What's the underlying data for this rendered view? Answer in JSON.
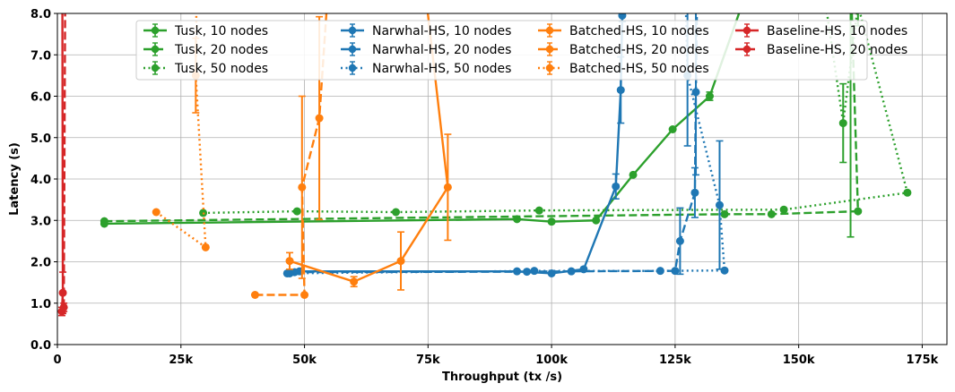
{
  "chart_data": {
    "type": "line",
    "title": "",
    "xlabel": "Throughput (tx /s)",
    "ylabel": "Latency (s)",
    "xlim": [
      0,
      180000
    ],
    "ylim": [
      0,
      8
    ],
    "x_ticks": [
      0,
      25000,
      50000,
      75000,
      100000,
      125000,
      150000,
      175000
    ],
    "x_tick_labels": [
      "0",
      "25k",
      "50k",
      "75k",
      "100k",
      "125k",
      "150k",
      "175k"
    ],
    "y_ticks": [
      0,
      1,
      2,
      3,
      4,
      5,
      6,
      7,
      8
    ],
    "y_tick_labels": [
      "0.0",
      "1.0",
      "2.0",
      "3.0",
      "4.0",
      "5.0",
      "6.0",
      "7.0",
      "8.0"
    ],
    "grid": true,
    "legend_position": "top-center",
    "legend_columns": 4,
    "colors": {
      "tusk": "#2ca02c",
      "narwhal": "#1f77b4",
      "batched": "#ff7f0e",
      "baseline": "#d62728"
    },
    "series": [
      {
        "name": "Tusk, 10 nodes",
        "color": "#2ca02c",
        "dash": "solid",
        "points": [
          [
            9500,
            2.92
          ],
          [
            93000,
            3.03
          ],
          [
            100000,
            2.97
          ],
          [
            109000,
            3.0
          ],
          [
            116500,
            4.1
          ],
          [
            124500,
            5.2
          ],
          [
            132000,
            6.0
          ],
          [
            140000,
            8.7
          ]
        ],
        "errors": [
          0.03,
          0.03,
          0.03,
          0.03,
          0.05,
          0.06,
          0.1,
          0.1
        ]
      },
      {
        "name": "Tusk, 20 nodes",
        "color": "#2ca02c",
        "dash": "dashed",
        "points": [
          [
            9500,
            2.98
          ],
          [
            135000,
            3.15
          ],
          [
            144500,
            3.15
          ],
          [
            162000,
            3.22
          ],
          [
            160500,
            9.0
          ]
        ],
        "errors": [
          0.03,
          0.05,
          0.05,
          0.05,
          6.4
        ]
      },
      {
        "name": "Tusk, 50 nodes",
        "color": "#2ca02c",
        "dash": "dotted",
        "points": [
          [
            29500,
            3.18
          ],
          [
            48500,
            3.22
          ],
          [
            68500,
            3.2
          ],
          [
            97500,
            3.24
          ],
          [
            147000,
            3.26
          ],
          [
            172000,
            3.67
          ],
          [
            162000,
            8.2
          ],
          [
            159000,
            5.35
          ],
          [
            155000,
            8.6
          ]
        ],
        "errors": [
          0.03,
          0.03,
          0.03,
          0.03,
          0.04,
          0.05,
          0.5,
          0.95,
          0.5
        ]
      },
      {
        "name": "Narwhal-HS, 10 nodes",
        "color": "#1f77b4",
        "dash": "solid",
        "points": [
          [
            47000,
            1.72
          ],
          [
            49000,
            1.77
          ],
          [
            93000,
            1.77
          ],
          [
            100000,
            1.72
          ],
          [
            106500,
            1.82
          ],
          [
            113000,
            3.82
          ],
          [
            114000,
            6.15
          ],
          [
            114300,
            7.95
          ]
        ],
        "errors": [
          0.03,
          0.03,
          0.03,
          0.03,
          0.03,
          0.3,
          0.8,
          0.15
        ]
      },
      {
        "name": "Narwhal-HS, 20 nodes",
        "color": "#1f77b4",
        "dash": "dashed",
        "points": [
          [
            48000,
            1.75
          ],
          [
            95000,
            1.76
          ],
          [
            104000,
            1.77
          ],
          [
            125000,
            1.78
          ],
          [
            126000,
            2.5
          ],
          [
            129000,
            3.67
          ],
          [
            129200,
            6.1
          ],
          [
            129500,
            9.0
          ]
        ],
        "errors": [
          0.03,
          0.03,
          0.03,
          0.03,
          0.8,
          0.6,
          2.0,
          0.2
        ]
      },
      {
        "name": "Narwhal-HS, 50 nodes",
        "color": "#1f77b4",
        "dash": "dotted",
        "points": [
          [
            46500,
            1.72
          ],
          [
            96500,
            1.78
          ],
          [
            122000,
            1.78
          ],
          [
            135000,
            1.79
          ],
          [
            134000,
            3.37
          ],
          [
            127500,
            6.5
          ],
          [
            127000,
            9.0
          ]
        ],
        "errors": [
          0.03,
          0.03,
          0.03,
          0.03,
          1.55,
          1.7,
          0.5
        ]
      },
      {
        "name": "Batched-HS, 10 nodes",
        "color": "#ff7f0e",
        "dash": "solid",
        "points": [
          [
            47000,
            2.02
          ],
          [
            60000,
            1.52
          ],
          [
            69500,
            2.02
          ],
          [
            79000,
            3.8
          ],
          [
            74000,
            9.0
          ]
        ],
        "errors": [
          0.2,
          0.12,
          0.7,
          1.28,
          0.3
        ]
      },
      {
        "name": "Batched-HS, 20 nodes",
        "color": "#ff7f0e",
        "dash": "dashed",
        "points": [
          [
            40000,
            1.2
          ],
          [
            50000,
            1.2
          ],
          [
            49500,
            3.8
          ],
          [
            53000,
            5.47
          ],
          [
            55000,
            9.0
          ]
        ],
        "errors": [
          0.03,
          0.03,
          2.2,
          2.45,
          0.3
        ]
      },
      {
        "name": "Batched-HS, 50 nodes",
        "color": "#ff7f0e",
        "dash": "dotted",
        "points": [
          [
            20000,
            3.2
          ],
          [
            30000,
            2.35
          ],
          [
            28000,
            6.5
          ],
          [
            28200,
            9.0
          ]
        ],
        "errors": [
          0.05,
          0.05,
          0.9,
          0.3
        ]
      },
      {
        "name": "Baseline-HS, 10 nodes",
        "color": "#d62728",
        "dash": "solid",
        "points": [
          [
            900,
            0.8
          ],
          [
            1100,
            1.25
          ],
          [
            1000,
            9.0
          ]
        ],
        "errors": [
          0.1,
          0.5,
          0.3
        ]
      },
      {
        "name": "Baseline-HS, 20 nodes",
        "color": "#d62728",
        "dash": "dashed",
        "points": [
          [
            1300,
            0.9
          ],
          [
            1600,
            9.0
          ]
        ],
        "errors": [
          0.1,
          0.3
        ]
      }
    ]
  }
}
